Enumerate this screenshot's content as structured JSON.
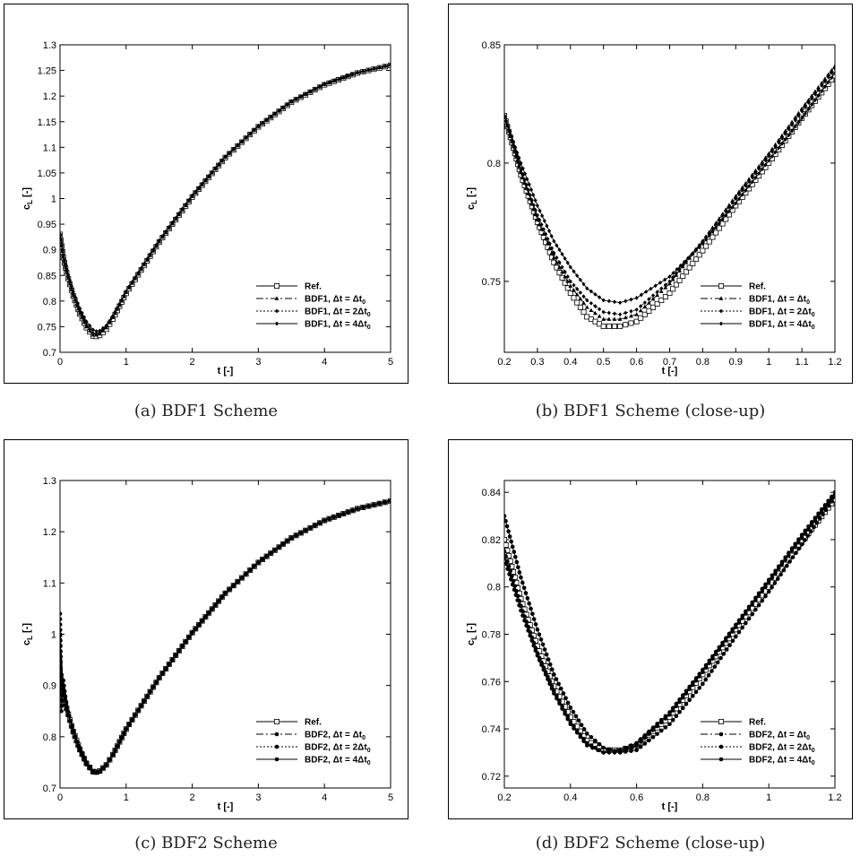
{
  "chart_data": [
    {
      "id": "a",
      "type": "line",
      "caption": "(a) BDF1 Scheme",
      "xlabel": "t [-]",
      "ylabel": "c_L [-]",
      "xlim": [
        0,
        5
      ],
      "ylim": [
        0.7,
        1.3
      ],
      "xticks": [
        0,
        1,
        2,
        3,
        4,
        5
      ],
      "yticks": [
        0.7,
        0.75,
        0.8,
        0.85,
        0.9,
        0.95,
        1,
        1.05,
        1.1,
        1.15,
        1.2,
        1.25,
        1.3
      ],
      "xtick_labels": [
        "0",
        "1",
        "2",
        "3",
        "4",
        "5"
      ],
      "ytick_labels": [
        "0.7",
        "0.75",
        "0.8",
        "0.85",
        "0.9",
        "0.95",
        "1",
        "1.05",
        "1.1",
        "1.15",
        "1.2",
        "1.25",
        "1.3"
      ],
      "legend_position": "lower-right",
      "series": [
        {
          "name": "Ref.",
          "scheme": "",
          "rhs": "",
          "marker": "square",
          "dash": "",
          "x": [
            0,
            0.05,
            0.1,
            0.2,
            0.3,
            0.4,
            0.5,
            0.55,
            0.6,
            0.7,
            0.8,
            0.9,
            1,
            1.5,
            2,
            2.5,
            3,
            3.5,
            4,
            4.5,
            5
          ],
          "y": [
            0.93,
            0.885,
            0.855,
            0.81,
            0.775,
            0.748,
            0.732,
            0.731,
            0.733,
            0.745,
            0.765,
            0.79,
            0.815,
            0.915,
            1.003,
            1.08,
            1.14,
            1.188,
            1.222,
            1.245,
            1.26
          ]
        },
        {
          "name": "BDF1,",
          "scheme": "BDF1",
          "rhs": "Δt₀",
          "marker": "triangle",
          "dash": "8,3,2,3",
          "x": [
            0,
            0.05,
            0.1,
            0.2,
            0.3,
            0.4,
            0.5,
            0.55,
            0.6,
            0.7,
            0.8,
            0.9,
            1,
            1.5,
            2,
            2.5,
            3,
            3.5,
            4,
            4.5,
            5
          ],
          "y": [
            0.93,
            0.886,
            0.856,
            0.811,
            0.776,
            0.75,
            0.734,
            0.734,
            0.736,
            0.748,
            0.768,
            0.792,
            0.817,
            0.916,
            1.004,
            1.081,
            1.141,
            1.189,
            1.223,
            1.246,
            1.261
          ]
        },
        {
          "name": "BDF1,",
          "scheme": "BDF1",
          "rhs": "2Δt₀",
          "marker": "diamond",
          "dash": "2,2",
          "x": [
            0,
            0.05,
            0.1,
            0.2,
            0.3,
            0.4,
            0.5,
            0.55,
            0.6,
            0.7,
            0.8,
            0.9,
            1,
            1.5,
            2,
            2.5,
            3,
            3.5,
            4,
            4.5,
            5
          ],
          "y": [
            0.93,
            0.887,
            0.858,
            0.813,
            0.779,
            0.753,
            0.737,
            0.736,
            0.738,
            0.75,
            0.77,
            0.793,
            0.818,
            0.917,
            1.005,
            1.081,
            1.141,
            1.189,
            1.223,
            1.246,
            1.261
          ]
        },
        {
          "name": "BDF1,",
          "scheme": "BDF1",
          "rhs": "4Δt₀",
          "marker": "diamond",
          "dash": "",
          "x": [
            0,
            0.05,
            0.1,
            0.2,
            0.3,
            0.4,
            0.5,
            0.55,
            0.6,
            0.7,
            0.8,
            0.9,
            1,
            1.5,
            2,
            2.5,
            3,
            3.5,
            4,
            4.5,
            5
          ],
          "y": [
            0.93,
            0.89,
            0.862,
            0.818,
            0.785,
            0.76,
            0.744,
            0.741,
            0.742,
            0.752,
            0.771,
            0.794,
            0.819,
            0.918,
            1.006,
            1.082,
            1.142,
            1.19,
            1.224,
            1.246,
            1.261
          ]
        }
      ]
    },
    {
      "id": "b",
      "type": "line",
      "caption": "(b) BDF1 Scheme (close-up)",
      "xlabel": "t [-]",
      "ylabel": "c_L [-]",
      "xlim": [
        0.2,
        1.2
      ],
      "ylim": [
        0.72,
        0.85
      ],
      "xticks": [
        0.2,
        0.3,
        0.4,
        0.5,
        0.6,
        0.7,
        0.8,
        0.9,
        1,
        1.1,
        1.2
      ],
      "yticks": [
        0.75,
        0.8,
        0.85
      ],
      "xtick_labels": [
        "0.2",
        "0.3",
        "0.4",
        "0.5",
        "0.6",
        "0.7",
        "0.8",
        "0.9",
        "1",
        "1.1",
        "1.2"
      ],
      "ytick_labels": [
        "0.75",
        "0.8",
        "0.85"
      ],
      "legend_position": "lower-right",
      "series": [
        {
          "name": "Ref.",
          "scheme": "",
          "rhs": "",
          "marker": "square",
          "dash": "",
          "x": [
            0.2,
            0.25,
            0.3,
            0.35,
            0.4,
            0.45,
            0.5,
            0.55,
            0.6,
            0.7,
            0.8,
            0.9,
            1,
            1.1,
            1.2
          ],
          "y": [
            0.82,
            0.795,
            0.775,
            0.758,
            0.745,
            0.735,
            0.731,
            0.731,
            0.733,
            0.745,
            0.763,
            0.782,
            0.8,
            0.819,
            0.837
          ]
        },
        {
          "name": "BDF1,",
          "scheme": "BDF1",
          "rhs": "Δt₀",
          "marker": "triangle",
          "dash": "8,3,2,3",
          "x": [
            0.2,
            0.25,
            0.3,
            0.35,
            0.4,
            0.45,
            0.5,
            0.55,
            0.6,
            0.7,
            0.8,
            0.9,
            1,
            1.1,
            1.2
          ],
          "y": [
            0.82,
            0.796,
            0.776,
            0.76,
            0.748,
            0.739,
            0.734,
            0.734,
            0.736,
            0.749,
            0.767,
            0.786,
            0.804,
            0.823,
            0.841
          ]
        },
        {
          "name": "BDF1,",
          "scheme": "BDF1",
          "rhs": "2Δt₀",
          "marker": "diamond",
          "dash": "2,2",
          "x": [
            0.2,
            0.25,
            0.3,
            0.35,
            0.4,
            0.45,
            0.5,
            0.55,
            0.6,
            0.7,
            0.8,
            0.9,
            1,
            1.1,
            1.2
          ],
          "y": [
            0.82,
            0.797,
            0.778,
            0.762,
            0.75,
            0.742,
            0.737,
            0.736,
            0.738,
            0.75,
            0.767,
            0.785,
            0.803,
            0.822,
            0.84
          ]
        },
        {
          "name": "BDF1,",
          "scheme": "BDF1",
          "rhs": "4Δt₀",
          "marker": "diamond",
          "dash": "",
          "x": [
            0.2,
            0.25,
            0.3,
            0.35,
            0.4,
            0.45,
            0.5,
            0.55,
            0.6,
            0.7,
            0.8,
            0.9,
            1,
            1.1,
            1.2
          ],
          "y": [
            0.82,
            0.8,
            0.782,
            0.767,
            0.756,
            0.747,
            0.742,
            0.741,
            0.743,
            0.752,
            0.766,
            0.783,
            0.801,
            0.819,
            0.838
          ]
        }
      ]
    },
    {
      "id": "c",
      "type": "line",
      "caption": "(c) BDF2 Scheme",
      "xlabel": "t [-]",
      "ylabel": "c_L [-]",
      "xlim": [
        0,
        5
      ],
      "ylim": [
        0.7,
        1.3
      ],
      "xticks": [
        0,
        1,
        2,
        3,
        4,
        5
      ],
      "yticks": [
        0.7,
        0.8,
        0.9,
        1,
        1.1,
        1.2,
        1.3
      ],
      "xtick_labels": [
        "0",
        "1",
        "2",
        "3",
        "4",
        "5"
      ],
      "ytick_labels": [
        "0.7",
        "0.8",
        "0.9",
        "1",
        "1.1",
        "1.2",
        "1.3"
      ],
      "legend_position": "lower-right",
      "series": [
        {
          "name": "Ref.",
          "scheme": "",
          "rhs": "",
          "marker": "square",
          "dash": "",
          "x": [
            0,
            0.05,
            0.1,
            0.2,
            0.3,
            0.4,
            0.5,
            0.55,
            0.6,
            0.7,
            0.8,
            0.9,
            1,
            1.5,
            2,
            2.5,
            3,
            3.5,
            4,
            4.5,
            5
          ],
          "y": [
            0.93,
            0.885,
            0.855,
            0.81,
            0.775,
            0.748,
            0.732,
            0.731,
            0.733,
            0.745,
            0.765,
            0.79,
            0.815,
            0.915,
            1.003,
            1.08,
            1.14,
            1.188,
            1.222,
            1.245,
            1.26
          ]
        },
        {
          "name": "BDF2,",
          "scheme": "BDF2",
          "rhs": "Δt₀",
          "marker": "circle",
          "dash": "8,3,2,3",
          "x": [
            0,
            0.02,
            0.05,
            0.1,
            0.2,
            0.3,
            0.4,
            0.5,
            0.55,
            0.6,
            0.7,
            0.8,
            0.9,
            1,
            1.5,
            2,
            2.5,
            3,
            3.5,
            4,
            4.5,
            5
          ],
          "y": [
            0.96,
            0.9,
            0.88,
            0.854,
            0.809,
            0.774,
            0.747,
            0.731,
            0.73,
            0.732,
            0.745,
            0.765,
            0.79,
            0.815,
            0.915,
            1.003,
            1.08,
            1.14,
            1.188,
            1.222,
            1.245,
            1.26
          ]
        },
        {
          "name": "BDF2,",
          "scheme": "BDF2",
          "rhs": "2Δt₀",
          "marker": "circle",
          "dash": "2,2",
          "x": [
            0,
            0.02,
            0.05,
            0.1,
            0.2,
            0.3,
            0.4,
            0.5,
            0.55,
            0.6,
            0.7,
            0.8,
            0.9,
            1,
            1.5,
            2,
            2.5,
            3,
            3.5,
            4,
            4.5,
            5
          ],
          "y": [
            1.0,
            0.86,
            0.893,
            0.853,
            0.808,
            0.773,
            0.746,
            0.73,
            0.73,
            0.732,
            0.745,
            0.765,
            0.79,
            0.815,
            0.915,
            1.003,
            1.08,
            1.14,
            1.188,
            1.222,
            1.245,
            1.26
          ]
        },
        {
          "name": "BDF2,",
          "scheme": "BDF2",
          "rhs": "4Δt₀",
          "marker": "circle",
          "dash": "",
          "x": [
            0,
            0.02,
            0.05,
            0.1,
            0.2,
            0.3,
            0.4,
            0.5,
            0.55,
            0.6,
            0.7,
            0.8,
            0.9,
            1,
            1.5,
            2,
            2.5,
            3,
            3.5,
            4,
            4.5,
            5
          ],
          "y": [
            1.04,
            0.85,
            0.91,
            0.858,
            0.812,
            0.778,
            0.75,
            0.733,
            0.731,
            0.733,
            0.745,
            0.765,
            0.79,
            0.815,
            0.915,
            1.003,
            1.08,
            1.14,
            1.188,
            1.222,
            1.245,
            1.26
          ]
        }
      ]
    },
    {
      "id": "d",
      "type": "line",
      "caption": "(d) BDF2 Scheme (close-up)",
      "xlabel": "t [-]",
      "ylabel": "c_L [-]",
      "xlim": [
        0.2,
        1.2
      ],
      "ylim": [
        0.715,
        0.845
      ],
      "xticks": [
        0.2,
        0.4,
        0.6,
        0.8,
        1,
        1.2
      ],
      "yticks": [
        0.72,
        0.74,
        0.76,
        0.78,
        0.8,
        0.82,
        0.84
      ],
      "xtick_labels": [
        "0.2",
        "0.4",
        "0.6",
        "0.8",
        "1",
        "1.2"
      ],
      "ytick_labels": [
        "0.72",
        "0.74",
        "0.76",
        "0.78",
        "0.8",
        "0.82",
        "0.84"
      ],
      "legend_position": "lower-right",
      "series": [
        {
          "name": "Ref.",
          "scheme": "",
          "rhs": "",
          "marker": "square",
          "dash": "",
          "x": [
            0.2,
            0.25,
            0.3,
            0.35,
            0.4,
            0.45,
            0.5,
            0.55,
            0.6,
            0.7,
            0.8,
            0.9,
            1,
            1.1,
            1.2
          ],
          "y": [
            0.82,
            0.795,
            0.775,
            0.758,
            0.745,
            0.735,
            0.731,
            0.731,
            0.733,
            0.745,
            0.763,
            0.782,
            0.8,
            0.819,
            0.837
          ]
        },
        {
          "name": "BDF2,",
          "scheme": "BDF2",
          "rhs": "Δt₀",
          "marker": "circle",
          "dash": "8,3,2,3",
          "x": [
            0.2,
            0.25,
            0.3,
            0.35,
            0.4,
            0.45,
            0.5,
            0.55,
            0.6,
            0.7,
            0.8,
            0.9,
            1,
            1.1,
            1.2
          ],
          "y": [
            0.815,
            0.792,
            0.772,
            0.756,
            0.743,
            0.734,
            0.73,
            0.73,
            0.733,
            0.746,
            0.764,
            0.783,
            0.802,
            0.821,
            0.839
          ]
        },
        {
          "name": "BDF2,",
          "scheme": "BDF2",
          "rhs": "2Δt₀",
          "marker": "circle",
          "dash": "2,2",
          "x": [
            0.2,
            0.25,
            0.3,
            0.35,
            0.4,
            0.45,
            0.5,
            0.55,
            0.6,
            0.7,
            0.8,
            0.9,
            1,
            1.1,
            1.2
          ],
          "y": [
            0.812,
            0.79,
            0.771,
            0.755,
            0.742,
            0.733,
            0.73,
            0.731,
            0.734,
            0.747,
            0.765,
            0.784,
            0.803,
            0.822,
            0.84
          ]
        },
        {
          "name": "BDF2,",
          "scheme": "BDF2",
          "rhs": "4Δt₀",
          "marker": "circle",
          "dash": "",
          "x": [
            0.2,
            0.25,
            0.3,
            0.35,
            0.4,
            0.45,
            0.5,
            0.55,
            0.6,
            0.7,
            0.8,
            0.9,
            1,
            1.1,
            1.2
          ],
          "y": [
            0.83,
            0.804,
            0.782,
            0.763,
            0.749,
            0.738,
            0.732,
            0.73,
            0.731,
            0.742,
            0.759,
            0.779,
            0.798,
            0.818,
            0.838
          ]
        }
      ]
    }
  ]
}
